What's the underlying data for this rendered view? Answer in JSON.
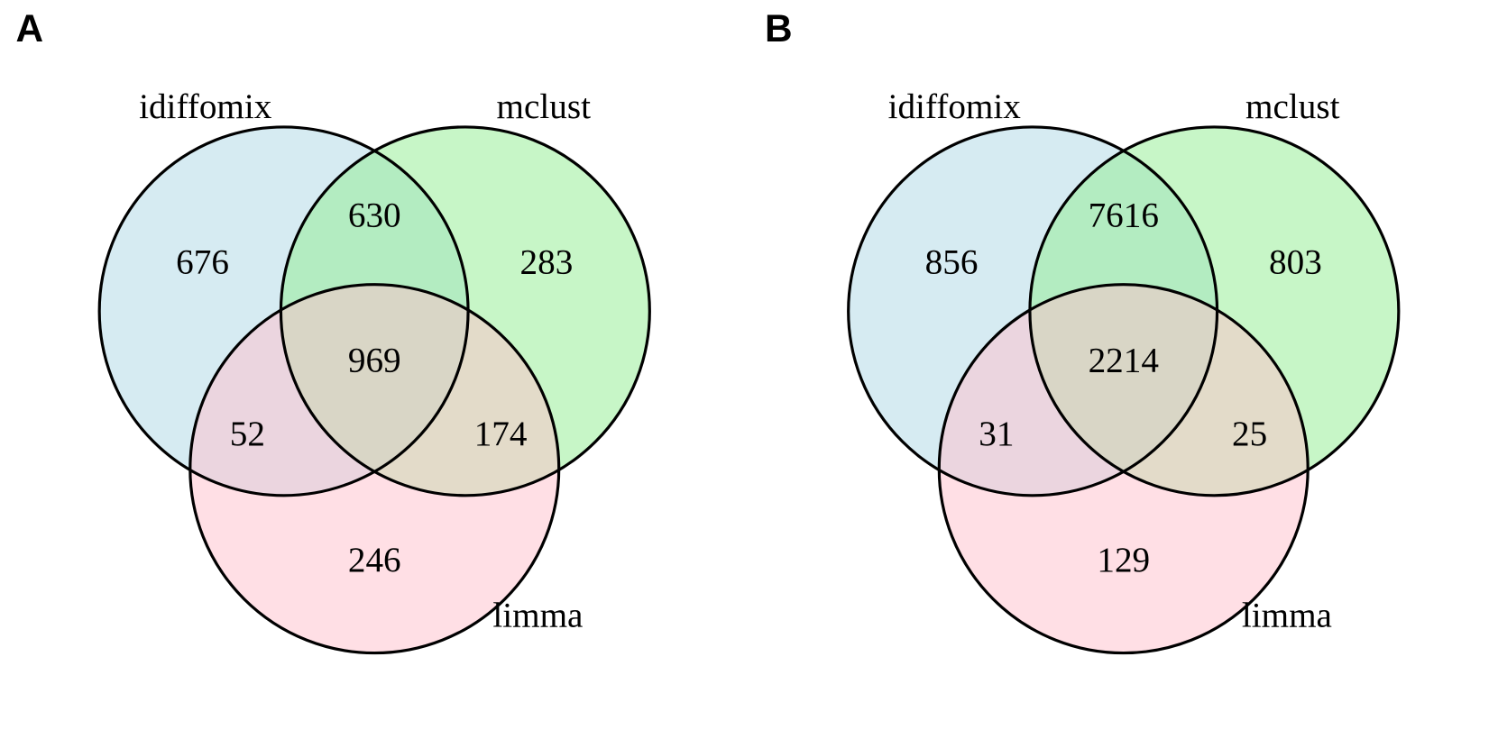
{
  "chart_data": [
    {
      "type": "venn",
      "label": "A",
      "sets": [
        {
          "name": "idiffomix",
          "color": "#add8e6"
        },
        {
          "name": "mclust",
          "color": "#90ee90"
        },
        {
          "name": "limma",
          "color": "#ffc0cb"
        }
      ],
      "values": [
        676,
        630,
        283,
        969,
        52,
        174,
        246
      ]
    },
    {
      "type": "venn",
      "label": "B",
      "sets": [
        {
          "name": "idiffomix",
          "color": "#add8e6"
        },
        {
          "name": "mclust",
          "color": "#90ee90"
        },
        {
          "name": "limma",
          "color": "#ffc0cb"
        }
      ],
      "values": [
        856,
        7616,
        803,
        2214,
        31,
        25,
        129
      ]
    }
  ]
}
